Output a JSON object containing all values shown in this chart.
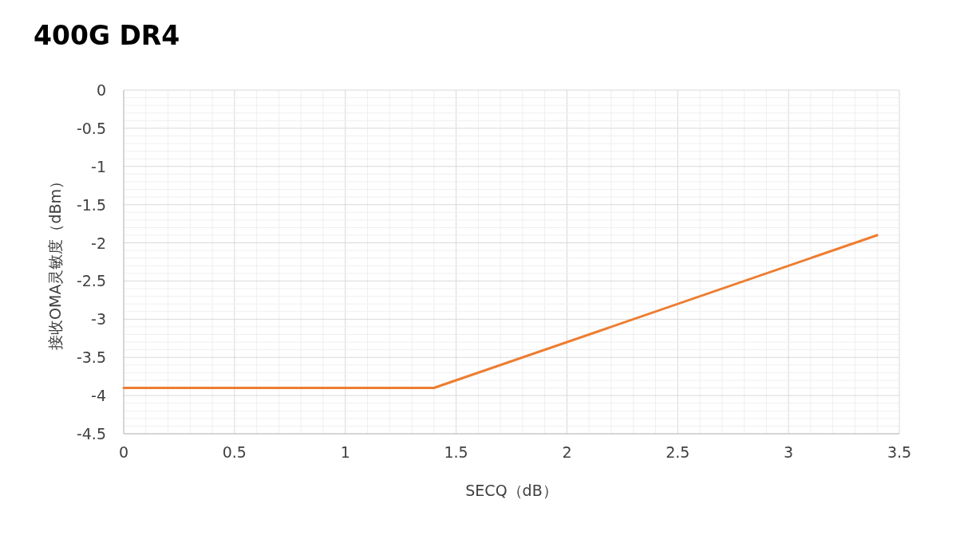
{
  "chart_data": {
    "type": "line",
    "title": "400G DR4",
    "xlabel": "SECQ（dB）",
    "ylabel": "接收OMA灵敏度（dBm）",
    "x": [
      0,
      1.4,
      3.4
    ],
    "series": [
      {
        "color": "#ed7d31",
        "values": [
          -3.9,
          -3.9,
          -1.9
        ]
      }
    ],
    "xlim": [
      0,
      3.5
    ],
    "xticks": [
      0,
      0.5,
      1,
      1.5,
      2,
      2.5,
      3,
      3.5
    ],
    "ylim": [
      -4.5,
      0
    ],
    "yticks": [
      0,
      -0.5,
      -1,
      -1.5,
      -2,
      -2.5,
      -3,
      -3.5,
      -4,
      -4.5
    ],
    "grid": true,
    "marker": "none",
    "line_style": "solid"
  }
}
